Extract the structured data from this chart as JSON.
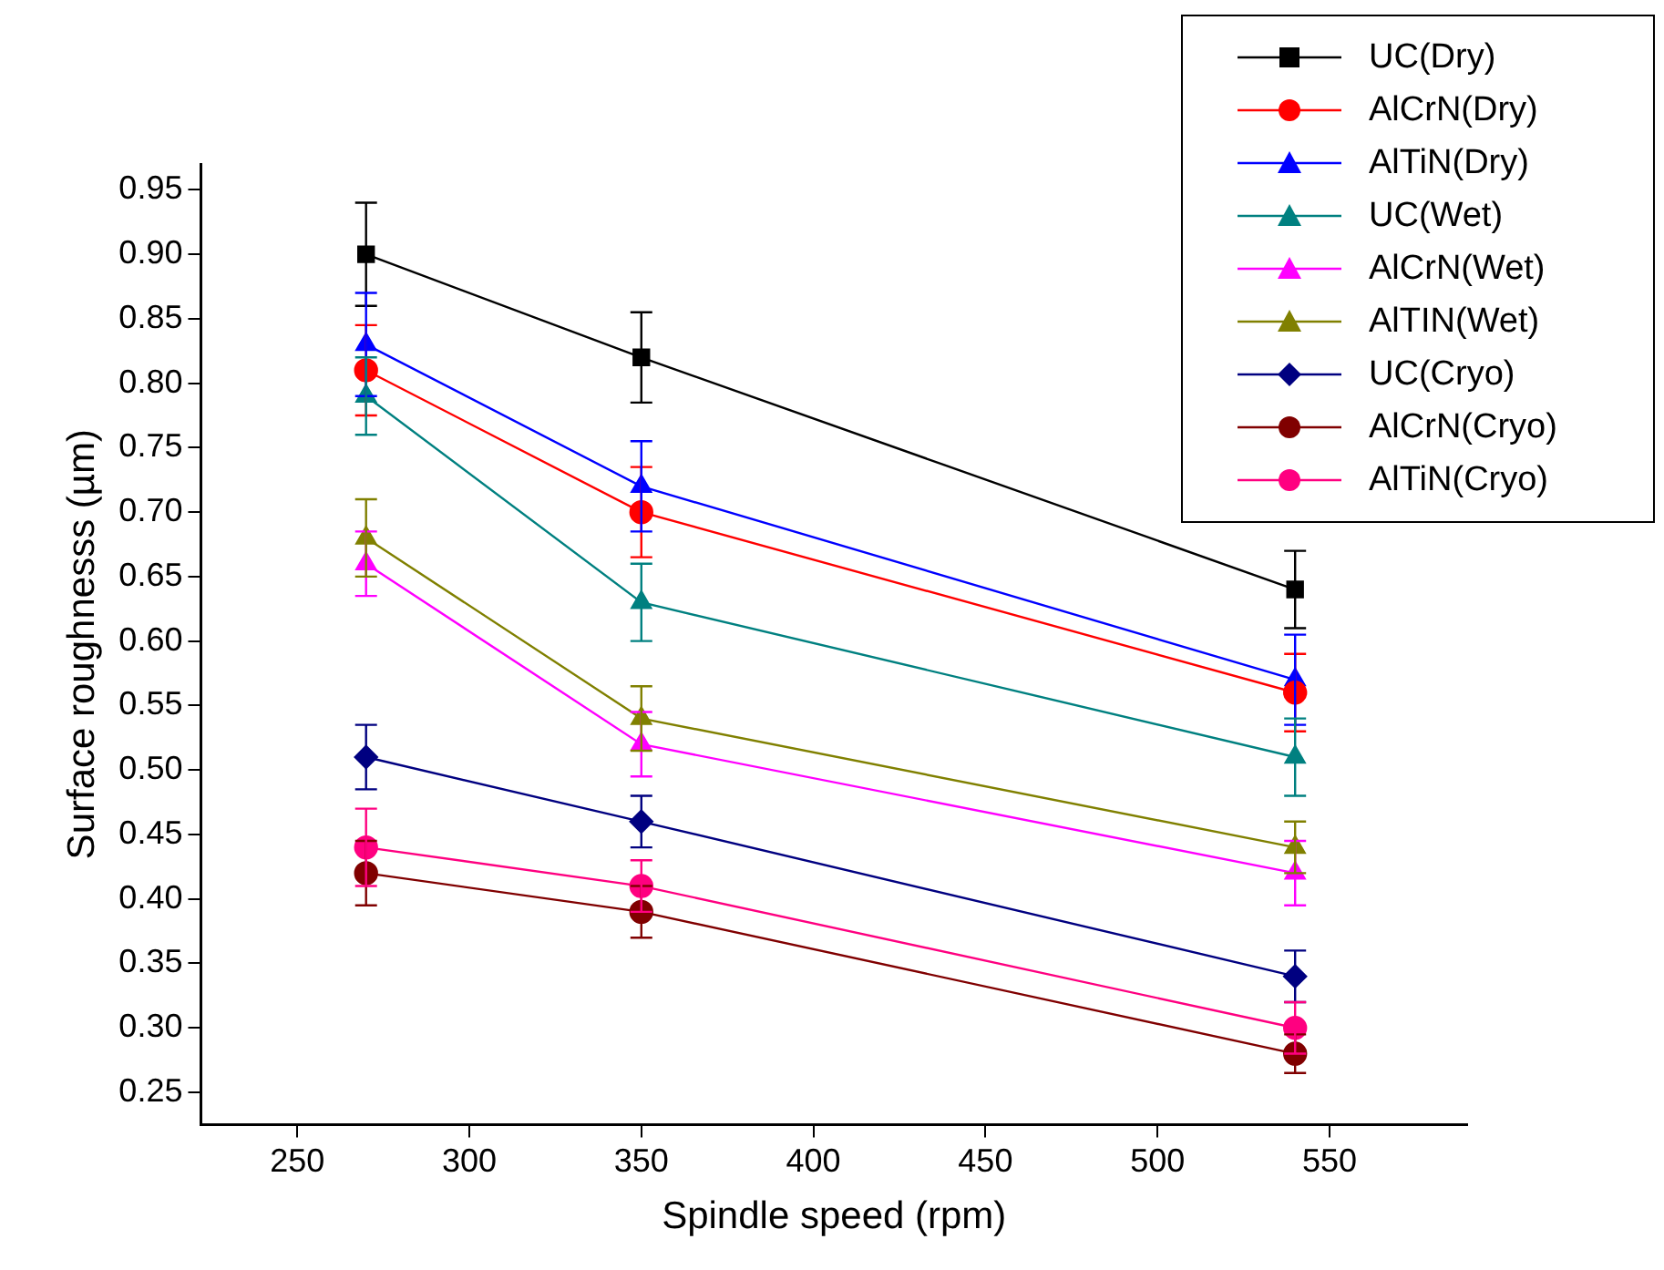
{
  "chart_data": {
    "type": "line",
    "xlabel": "Spindle speed (rpm)",
    "ylabel": "Surface roughnesss (µm)",
    "x": [
      270,
      350,
      540
    ],
    "xlim": [
      222,
      590
    ],
    "xticks": [
      250,
      300,
      350,
      400,
      450,
      500,
      550
    ],
    "ylim": [
      0.225,
      0.97
    ],
    "yticks": [
      0.25,
      {
        "value": 0.3,
        "label": "0.30"
      },
      0.35,
      {
        "value": 0.4,
        "label": "0.40"
      },
      0.45,
      {
        "value": 0.5,
        "label": "0.50"
      },
      0.55,
      {
        "value": 0.6,
        "label": "0.60"
      },
      0.65,
      {
        "value": 0.7,
        "label": "0.70"
      },
      0.75,
      {
        "value": 0.8,
        "label": "0.80"
      },
      0.85,
      {
        "value": 0.9,
        "label": "0.90"
      },
      0.95
    ],
    "legend": "top right",
    "series": [
      {
        "name": "UC(Dry)",
        "color": "#000000",
        "marker": "square",
        "values": [
          0.9,
          0.82,
          0.64
        ],
        "errors": [
          0.04,
          0.035,
          0.03
        ]
      },
      {
        "name": "AlCrN(Dry)",
        "color": "#ff0000",
        "marker": "circle",
        "values": [
          0.81,
          0.7,
          0.56
        ],
        "errors": [
          0.035,
          0.035,
          0.03
        ]
      },
      {
        "name": "AlTiN(Dry)",
        "color": "#0000ff",
        "marker": "triangle",
        "values": [
          0.83,
          0.72,
          0.57
        ],
        "errors": [
          0.04,
          0.035,
          0.035
        ]
      },
      {
        "name": "UC(Wet)",
        "color": "#008080",
        "marker": "triangle",
        "values": [
          0.79,
          0.63,
          0.51
        ],
        "errors": [
          0.03,
          0.03,
          0.03
        ]
      },
      {
        "name": "AlCrN(Wet)",
        "color": "#ff00ff",
        "marker": "triangle",
        "values": [
          0.66,
          0.52,
          0.42
        ],
        "errors": [
          0.025,
          0.025,
          0.025
        ]
      },
      {
        "name": "AlTIN(Wet)",
        "color": "#808000",
        "marker": "triangle",
        "values": [
          0.68,
          0.54,
          0.44
        ],
        "errors": [
          0.03,
          0.025,
          0.02
        ]
      },
      {
        "name": "UC(Cryo)",
        "color": "#000080",
        "marker": "diamond",
        "values": [
          0.51,
          0.46,
          0.34
        ],
        "errors": [
          0.025,
          0.02,
          0.02
        ]
      },
      {
        "name": "AlCrN(Cryo)",
        "color": "#800000",
        "marker": "circle",
        "values": [
          0.42,
          0.39,
          0.28
        ],
        "errors": [
          0.025,
          0.02,
          0.015
        ]
      },
      {
        "name": "AlTiN(Cryo)",
        "color": "#ff0080",
        "marker": "circle",
        "values": [
          0.44,
          0.41,
          0.3
        ],
        "errors": [
          0.03,
          0.02,
          0.02
        ]
      }
    ]
  }
}
